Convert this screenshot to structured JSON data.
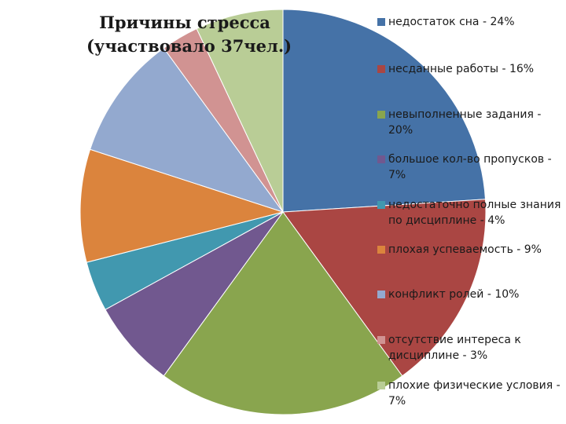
{
  "chart_data": {
    "type": "pie",
    "title": "Причины стресса",
    "subtitle": "(участвовало 37чел.)",
    "legend_position": "right",
    "slices": [
      {
        "label": "недостаток сна - 24%",
        "value": 24,
        "color": "#4572A7"
      },
      {
        "label": "несданные работы - 16%",
        "value": 16,
        "color": "#AA4643"
      },
      {
        "label": "невыполненные задания - 20%",
        "value": 20,
        "color": "#89A54E"
      },
      {
        "label": "большое кол-во пропусков - 7%",
        "value": 7,
        "color": "#71588F"
      },
      {
        "label": "недостаточно полные знания по дисциплине - 4%",
        "value": 4,
        "color": "#4198AF"
      },
      {
        "label": "плохая успеваемость - 9%",
        "value": 9,
        "color": "#DB843D"
      },
      {
        "label": "конфликт ролей - 10%",
        "value": 10,
        "color": "#93A9CF"
      },
      {
        "label": "отсутствие интереса к дисциплине - 3%",
        "value": 3,
        "color": "#D19392"
      },
      {
        "label": "плохие физические условия - 7%",
        "value": 7,
        "color": "#B9CD96"
      }
    ]
  }
}
